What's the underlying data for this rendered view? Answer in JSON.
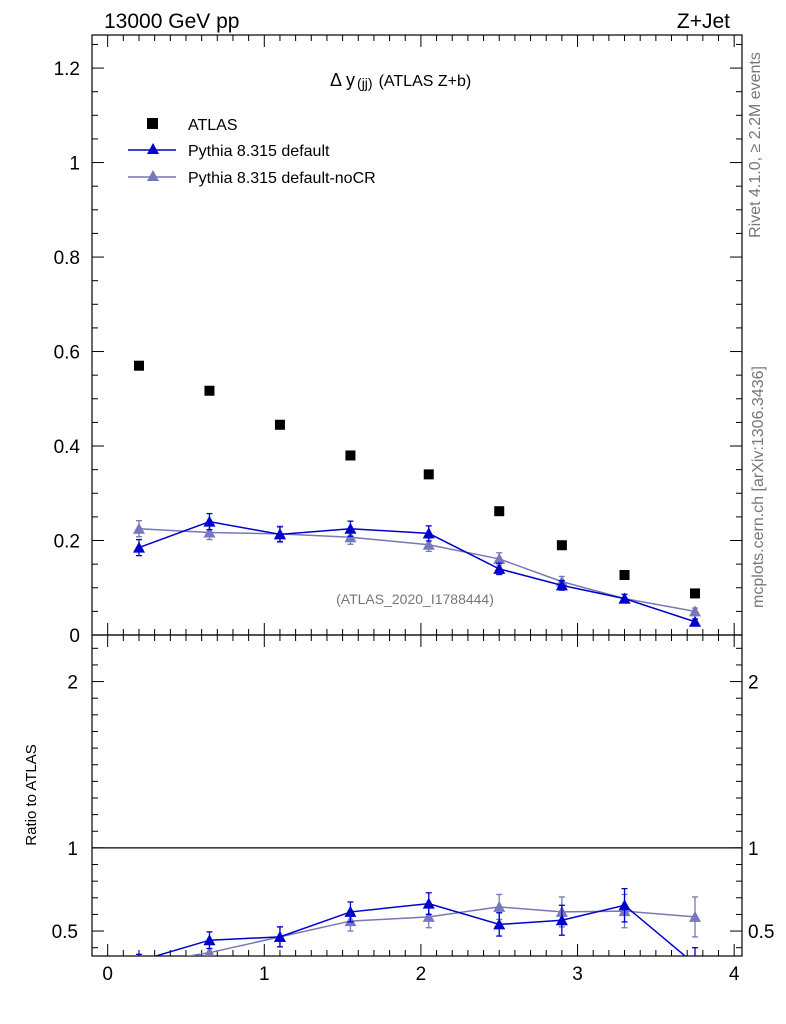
{
  "header": {
    "left": "13000 GeV pp",
    "right": "Z+Jet"
  },
  "side": {
    "rivet": "Rivet 4.1.0, ≥ 2.2M events",
    "mcplots": "mcplots.cern.ch [arXiv:1306.3436]"
  },
  "chart_data": [
    {
      "type": "scatter",
      "title": "Δ y(jj) (ATLAS Z+b)",
      "title_main": "Δ y",
      "title_sub": "(jj)",
      "title_rest": "(ATLAS Z+b)",
      "watermark": "(ATLAS_2020_I1788444)",
      "xlim": [
        -0.1,
        4.05
      ],
      "ylim": [
        0,
        1.27
      ],
      "yticks": [
        0,
        0.2,
        0.4,
        0.6,
        0.8,
        1,
        1.2
      ],
      "ytick_labels": [
        "0",
        "0.2",
        "0.4",
        "0.6",
        "0.8",
        "1",
        "1.2"
      ],
      "legend": [
        "ATLAS",
        "Pythia 8.315 default",
        "Pythia 8.315 default-noCR"
      ],
      "series": [
        {
          "name": "ATLAS",
          "marker": "square",
          "color": "#000000",
          "x": [
            0.2,
            0.65,
            1.1,
            1.55,
            2.05,
            2.5,
            2.9,
            3.3,
            3.75
          ],
          "y": [
            0.57,
            0.517,
            0.445,
            0.38,
            0.34,
            0.262,
            0.19,
            0.127,
            0.088
          ],
          "err": [
            0,
            0,
            0,
            0,
            0,
            0,
            0,
            0,
            0
          ]
        },
        {
          "name": "Pythia 8.315 default",
          "marker": "triangle",
          "color": "#0000cc",
          "x": [
            0.2,
            0.65,
            1.1,
            1.55,
            2.05,
            2.5,
            2.9,
            3.3,
            3.75
          ],
          "y": [
            0.185,
            0.24,
            0.213,
            0.225,
            0.215,
            0.14,
            0.105,
            0.077,
            0.028
          ],
          "err": [
            0.017,
            0.017,
            0.016,
            0.016,
            0.016,
            0.012,
            0.01,
            0.009,
            0.006
          ]
        },
        {
          "name": "Pythia 8.315 default-noCR",
          "marker": "triangle",
          "color": "#7777bb",
          "x": [
            0.2,
            0.65,
            1.1,
            1.55,
            2.05,
            2.5,
            2.9,
            3.3,
            3.75
          ],
          "y": [
            0.225,
            0.217,
            0.214,
            0.207,
            0.191,
            0.161,
            0.113,
            0.077,
            0.05
          ],
          "err": [
            0.017,
            0.015,
            0.016,
            0.015,
            0.014,
            0.013,
            0.011,
            0.009,
            0.007
          ]
        }
      ]
    },
    {
      "type": "scatter",
      "ylabel": "Ratio to ATLAS",
      "xlim": [
        -0.1,
        4.05
      ],
      "ylim": [
        0.35,
        2.28
      ],
      "reference_line": 1,
      "yticks": [
        0.5,
        1,
        2
      ],
      "ytick_labels": [
        "0.5",
        "1",
        "2"
      ],
      "xticks": [
        0,
        1,
        2,
        3,
        4
      ],
      "xtick_labels": [
        "0",
        "1",
        "2",
        "3",
        "4"
      ],
      "series": [
        {
          "name": "Pythia 8.315 default",
          "marker": "triangle",
          "color": "#0000cc",
          "x": [
            0.2,
            0.65,
            1.1,
            1.55,
            2.05,
            2.5,
            2.9,
            3.3,
            3.75
          ],
          "y": [
            0.32,
            0.445,
            0.465,
            0.615,
            0.665,
            0.54,
            0.565,
            0.655,
            0.3
          ],
          "err": [
            0.04,
            0.05,
            0.06,
            0.06,
            0.065,
            0.07,
            0.09,
            0.1,
            0.1
          ]
        },
        {
          "name": "Pythia 8.315 default-noCR",
          "marker": "triangle",
          "color": "#7777bb",
          "x": [
            0.2,
            0.65,
            1.1,
            1.55,
            2.05,
            2.5,
            2.9,
            3.3,
            3.75
          ],
          "y": [
            0.3,
            0.37,
            0.465,
            0.56,
            0.585,
            0.645,
            0.615,
            0.62,
            0.585
          ],
          "err": [
            0.04,
            0.05,
            0.06,
            0.06,
            0.065,
            0.075,
            0.09,
            0.1,
            0.12
          ]
        }
      ]
    }
  ]
}
